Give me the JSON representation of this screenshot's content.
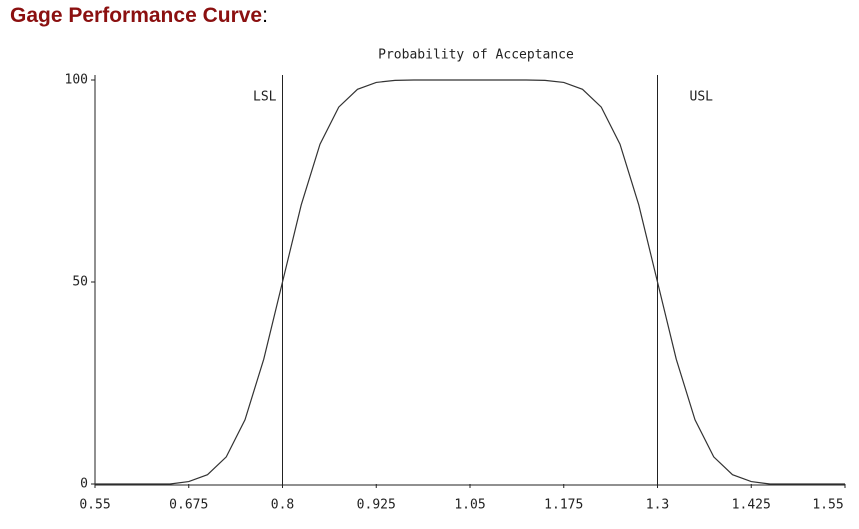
{
  "heading": "Gage Performance Curve",
  "heading_suffix": ":",
  "chart_data": {
    "type": "line",
    "title": "Probability of Acceptance",
    "x": [
      0.55,
      0.575,
      0.6,
      0.625,
      0.65,
      0.675,
      0.7,
      0.725,
      0.75,
      0.775,
      0.8,
      0.825,
      0.85,
      0.875,
      0.9,
      0.925,
      0.95,
      0.975,
      1.0,
      1.025,
      1.05,
      1.075,
      1.1,
      1.125,
      1.15,
      1.175,
      1.2,
      1.225,
      1.25,
      1.275,
      1.3,
      1.325,
      1.35,
      1.375,
      1.4,
      1.425,
      1.45,
      1.475,
      1.5,
      1.525,
      1.55
    ],
    "series": [
      {
        "name": "Probability of Acceptance",
        "color": "#333333",
        "values": [
          0,
          0,
          0,
          0,
          0,
          0.6,
          2.3,
          6.7,
          15.9,
          30.9,
          50,
          69.1,
          84.1,
          93.3,
          97.7,
          99.4,
          99.9,
          100,
          100,
          100,
          100,
          100,
          100,
          100,
          99.9,
          99.4,
          97.7,
          93.3,
          84.1,
          69.1,
          50,
          30.9,
          15.9,
          6.7,
          2.3,
          0.6,
          0,
          0,
          0,
          0,
          0
        ]
      }
    ],
    "xlim": [
      0.55,
      1.55
    ],
    "xticks": [
      0.55,
      0.675,
      0.8,
      0.925,
      1.05,
      1.175,
      1.3,
      1.425,
      1.55
    ],
    "ylim": [
      0,
      100
    ],
    "yticks": [
      0,
      50,
      100
    ],
    "grid": false,
    "reference_lines": [
      {
        "label": "LSL",
        "x": 0.8
      },
      {
        "label": "USL",
        "x": 1.3
      }
    ]
  }
}
